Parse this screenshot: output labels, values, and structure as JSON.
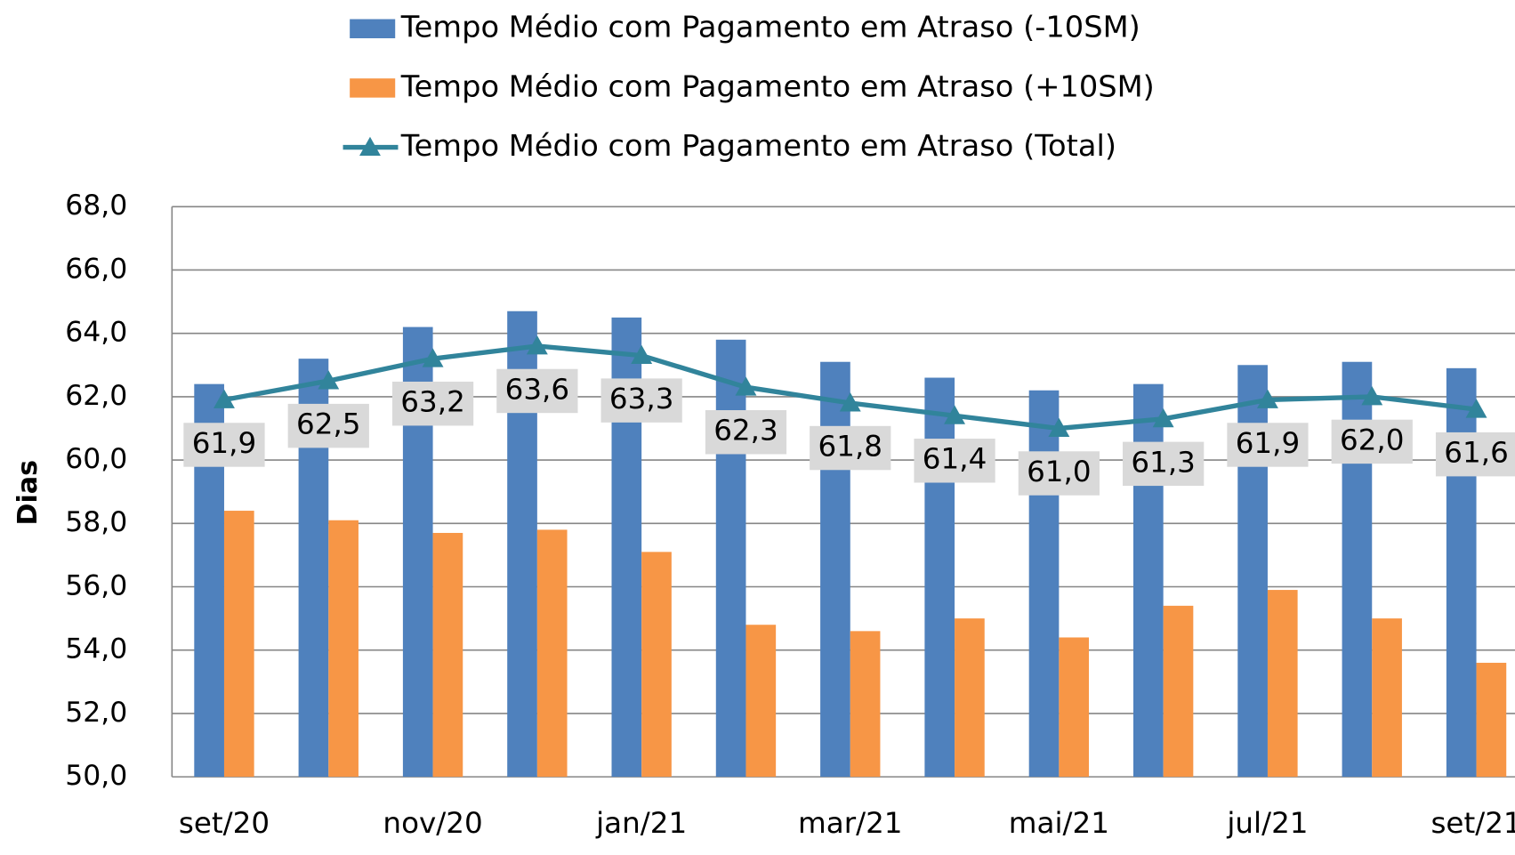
{
  "chart_data": {
    "type": "bar_line",
    "y_label": "Dias",
    "categories": [
      "set/20",
      null,
      "nov/20",
      null,
      "jan/21",
      null,
      "mar/21",
      null,
      "mai/21",
      null,
      "jul/21",
      null,
      "set/21"
    ],
    "series": [
      {
        "name": "Tempo Médio com Pagamento em Atraso (-10SM)",
        "type": "bar",
        "color": "#4f81bd",
        "values": [
          62.4,
          63.2,
          64.2,
          64.7,
          64.5,
          63.8,
          63.1,
          62.6,
          62.2,
          62.4,
          63.0,
          63.1,
          62.9
        ]
      },
      {
        "name": "Tempo Médio com Pagamento em Atraso (+10SM)",
        "type": "bar",
        "color": "#f79646",
        "values": [
          58.4,
          58.1,
          57.7,
          57.8,
          57.1,
          54.8,
          54.6,
          55.0,
          54.4,
          55.4,
          55.9,
          55.0,
          53.6
        ]
      },
      {
        "name": "Tempo Médio com Pagamento em Atraso (Total)",
        "type": "line",
        "color": "#31849b",
        "values": [
          61.9,
          62.5,
          63.2,
          63.6,
          63.3,
          62.3,
          61.8,
          61.4,
          61.0,
          61.3,
          61.9,
          62.0,
          61.6
        ],
        "value_labels": [
          "61,9",
          "62,5",
          "63,2",
          "63,6",
          "63,3",
          "62,3",
          "61,8",
          "61,4",
          "61,0",
          "61,3",
          "61,9",
          "62,0",
          "61,6"
        ]
      }
    ],
    "ylim": [
      50,
      68
    ],
    "yticks": [
      {
        "value": 50,
        "label": "50,0"
      },
      {
        "value": 52,
        "label": "52,0"
      },
      {
        "value": 54,
        "label": "54,0"
      },
      {
        "value": 56,
        "label": "56,0"
      },
      {
        "value": 58,
        "label": "58,0"
      },
      {
        "value": 60,
        "label": "60,0"
      },
      {
        "value": 62,
        "label": "62,0"
      },
      {
        "value": 64,
        "label": "64,0"
      },
      {
        "value": 66,
        "label": "66,0"
      },
      {
        "value": 68,
        "label": "68,0"
      }
    ],
    "grid": true
  }
}
